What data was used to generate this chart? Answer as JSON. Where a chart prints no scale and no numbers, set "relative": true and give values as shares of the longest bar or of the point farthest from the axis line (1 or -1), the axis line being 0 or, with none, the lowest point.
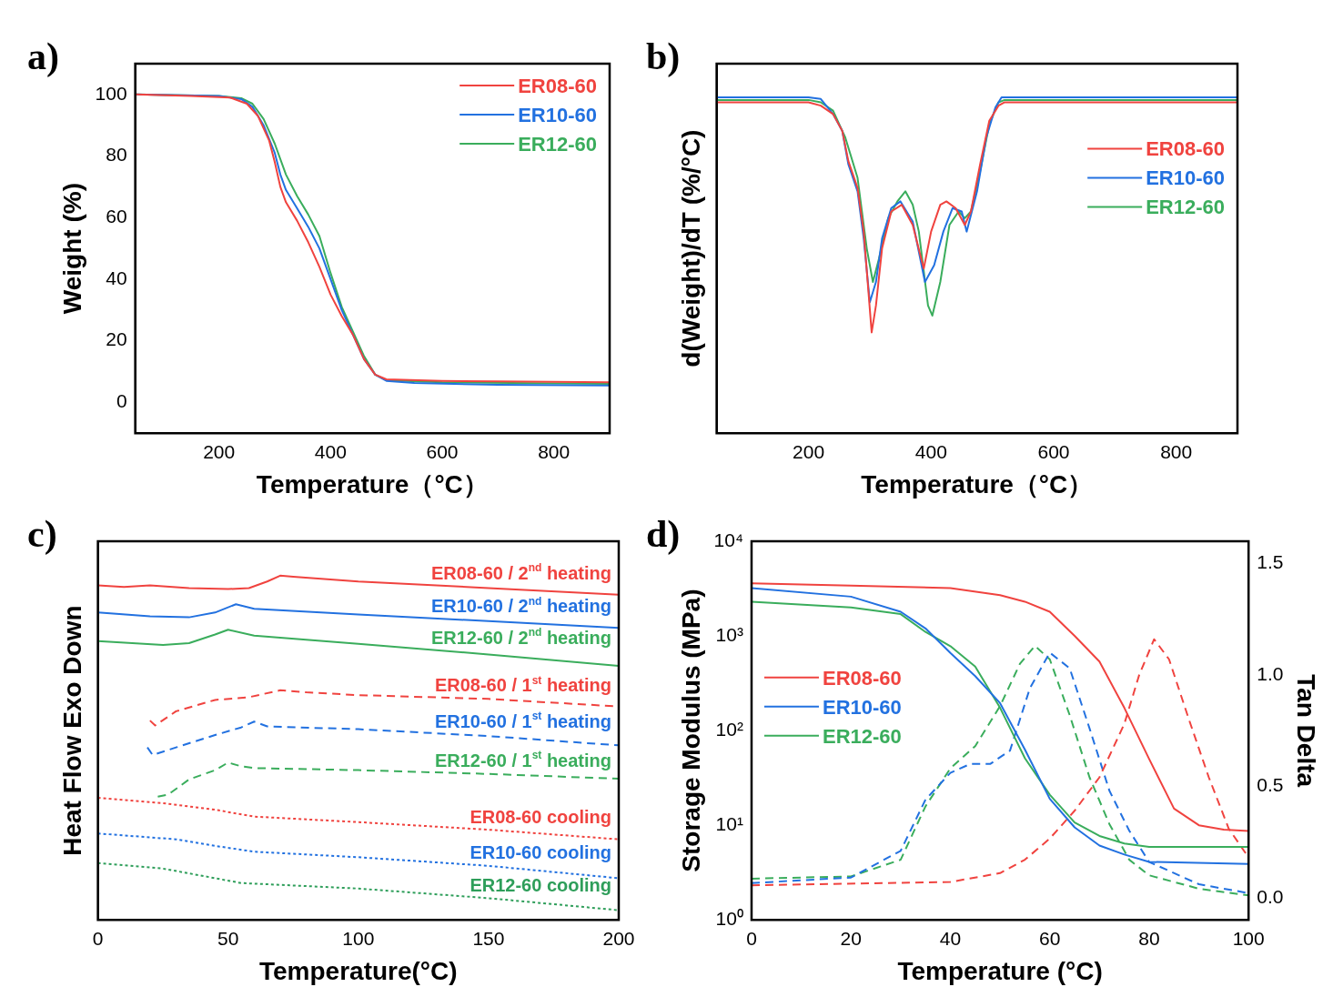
{
  "chart_data": [
    {
      "type": "line",
      "title": "a)",
      "xlabel": "Temperature（°C）",
      "ylabel": "Weight (%)",
      "xlim": [
        50,
        900
      ],
      "xticks": [
        200,
        400,
        600,
        800
      ],
      "ylim": [
        -10,
        110
      ],
      "yticks": [
        0,
        20,
        40,
        60,
        80,
        100
      ],
      "legend": "top right",
      "line_style": "solid",
      "marker": "none",
      "series": [
        {
          "name": "ER08-60",
          "color": "#f0433f",
          "x": [
            50,
            150,
            220,
            250,
            270,
            290,
            300,
            310,
            320,
            340,
            360,
            380,
            400,
            420,
            440,
            460,
            480,
            500,
            600,
            700,
            900
          ],
          "values": [
            100,
            99.5,
            99,
            97,
            93,
            85,
            78,
            70,
            65,
            59,
            52,
            44,
            35,
            28,
            22,
            14,
            9,
            7.5,
            7,
            6.8,
            6.5
          ]
        },
        {
          "name": "ER10-60",
          "color": "#2271e0",
          "x": [
            50,
            200,
            240,
            260,
            280,
            300,
            310,
            320,
            340,
            360,
            380,
            400,
            420,
            440,
            460,
            480,
            500,
            550,
            700,
            900
          ],
          "values": [
            100,
            99.5,
            98.5,
            96,
            90,
            81,
            74,
            69,
            63,
            57,
            50,
            40,
            30,
            22,
            14,
            9,
            7,
            6.3,
            5.7,
            5.5
          ]
        },
        {
          "name": "ER12-60",
          "color": "#3aad5c",
          "x": [
            50,
            200,
            240,
            260,
            280,
            300,
            320,
            340,
            360,
            380,
            400,
            420,
            440,
            460,
            480,
            500,
            600,
            900
          ],
          "values": [
            100,
            99.5,
            98.8,
            97,
            92,
            84,
            74,
            67,
            61,
            54,
            42,
            31,
            23,
            15,
            9,
            7.2,
            6.5,
            6
          ]
        }
      ]
    },
    {
      "type": "line",
      "title": "b)",
      "xlabel": "Temperature（°C）",
      "ylabel": "d(Weight)/dT (%/°C)",
      "xlim": [
        50,
        900
      ],
      "xticks": [
        200,
        400,
        600,
        800
      ],
      "relative": true,
      "tick_labels": "x",
      "legend": "right",
      "line_style": "solid",
      "marker": "none",
      "series": [
        {
          "name": "ER08-60",
          "color": "#f0433f",
          "x": [
            50,
            200,
            220,
            240,
            255,
            265,
            280,
            290,
            303,
            310,
            320,
            335,
            352,
            370,
            388,
            400,
            415,
            425,
            440,
            455,
            465,
            480,
            495,
            510,
            520,
            900
          ],
          "values": [
            0.985,
            0.985,
            0.975,
            0.95,
            0.9,
            0.81,
            0.73,
            0.6,
            0.3,
            0.38,
            0.55,
            0.66,
            0.68,
            0.62,
            0.49,
            0.6,
            0.68,
            0.69,
            0.67,
            0.62,
            0.66,
            0.8,
            0.93,
            0.975,
            0.985,
            0.985
          ]
        },
        {
          "name": "ER10-60",
          "color": "#2271e0",
          "x": [
            50,
            200,
            220,
            240,
            255,
            265,
            280,
            290,
            300,
            310,
            320,
            335,
            350,
            370,
            390,
            405,
            420,
            435,
            450,
            458,
            475,
            490,
            505,
            515,
            900
          ],
          "values": [
            1,
            1,
            0.995,
            0.95,
            0.9,
            0.8,
            0.72,
            0.58,
            0.39,
            0.45,
            0.58,
            0.67,
            0.69,
            0.63,
            0.45,
            0.5,
            0.6,
            0.67,
            0.66,
            0.6,
            0.72,
            0.88,
            0.97,
            1,
            1
          ]
        },
        {
          "name": "ER12-60",
          "color": "#3aad5c",
          "x": [
            50,
            200,
            220,
            240,
            260,
            280,
            295,
            305,
            315,
            330,
            345,
            358,
            370,
            380,
            395,
            402,
            415,
            430,
            445,
            455,
            465,
            480,
            495,
            510,
            520,
            900
          ],
          "values": [
            0.992,
            0.992,
            0.985,
            0.96,
            0.88,
            0.76,
            0.55,
            0.45,
            0.52,
            0.64,
            0.69,
            0.72,
            0.68,
            0.6,
            0.38,
            0.35,
            0.45,
            0.62,
            0.66,
            0.64,
            0.66,
            0.78,
            0.92,
            0.985,
            0.992,
            0.992
          ]
        }
      ]
    },
    {
      "type": "line",
      "title": "c)",
      "xlabel": "Temperature(°C)",
      "ylabel": "Heat Flow Exo Down",
      "xlim": [
        0,
        200
      ],
      "xticks": [
        0,
        50,
        100,
        150,
        200
      ],
      "relative": true,
      "tick_labels": "x",
      "marker": "none",
      "series": [
        {
          "name": "ER08-60 / 2$^{nd}$ heating",
          "color": "#f0433f",
          "line_style": "solid",
          "x": [
            0,
            10,
            20,
            35,
            50,
            58,
            65,
            70,
            75,
            100,
            150,
            200
          ],
          "values": [
            0.972,
            0.967,
            0.972,
            0.964,
            0.961,
            0.964,
            0.983,
            1,
            0.997,
            0.983,
            0.964,
            0.945
          ]
        },
        {
          "name": "ER10-60 / 2$^{nd}$ heating",
          "color": "#2271e0",
          "line_style": "solid",
          "x": [
            0,
            20,
            35,
            45,
            53,
            60,
            100,
            150,
            200
          ],
          "values": [
            0.893,
            0.882,
            0.879,
            0.893,
            0.917,
            0.904,
            0.887,
            0.868,
            0.848
          ]
        },
        {
          "name": "ER12-60 / 2$^{nd}$ heating",
          "color": "#3aad5c",
          "line_style": "solid",
          "x": [
            0,
            25,
            35,
            45,
            50,
            60,
            100,
            150,
            200
          ],
          "values": [
            0.81,
            0.799,
            0.804,
            0.829,
            0.843,
            0.826,
            0.802,
            0.771,
            0.738
          ]
        },
        {
          "name": "ER08-60 / 1$^{st}$ heating",
          "color": "#f0433f",
          "line_style": "dashed",
          "x": [
            20,
            22,
            30,
            45,
            58,
            70,
            80,
            100,
            150,
            200
          ],
          "values": [
            0.579,
            0.565,
            0.606,
            0.639,
            0.647,
            0.667,
            0.661,
            0.653,
            0.642,
            0.62
          ]
        },
        {
          "name": "ER10-60 / 1$^{st}$ heating",
          "color": "#2271e0",
          "line_style": "dashed",
          "x": [
            19,
            21,
            30,
            45,
            55,
            60,
            65,
            100,
            150,
            200
          ],
          "values": [
            0.501,
            0.479,
            0.501,
            0.537,
            0.559,
            0.576,
            0.562,
            0.554,
            0.534,
            0.507
          ]
        },
        {
          "name": "ER12-60 / 1$^{st}$ heating",
          "color": "#3aad5c",
          "line_style": "dashed",
          "x": [
            23,
            27,
            35,
            45,
            50,
            55,
            60,
            100,
            150,
            200
          ],
          "values": [
            0.358,
            0.364,
            0.408,
            0.435,
            0.457,
            0.446,
            0.441,
            0.435,
            0.424,
            0.41
          ]
        },
        {
          "name": "ER08-60 cooling",
          "color": "#f0433f",
          "line_style": "dotted",
          "x": [
            0,
            25,
            45,
            60,
            100,
            150,
            200
          ],
          "values": [
            0.355,
            0.339,
            0.32,
            0.3,
            0.284,
            0.262,
            0.234
          ]
        },
        {
          "name": "ER10-60 cooling",
          "color": "#2271e0",
          "line_style": "dotted",
          "x": [
            0,
            30,
            45,
            60,
            100,
            150,
            200
          ],
          "values": [
            0.251,
            0.234,
            0.215,
            0.198,
            0.182,
            0.157,
            0.121
          ]
        },
        {
          "name": "ER12-60 cooling",
          "color": "#2e9e5a",
          "line_style": "dotted",
          "x": [
            0,
            25,
            45,
            55,
            100,
            150,
            200
          ],
          "values": [
            0.165,
            0.149,
            0.121,
            0.107,
            0.091,
            0.063,
            0.028
          ]
        }
      ]
    },
    {
      "type": "line",
      "title": "d)",
      "xlabel": "Temperature (°C)",
      "ylabel": "Storage Modulus (MPa)",
      "y2label": "Tan Delta",
      "xlim": [
        0,
        100
      ],
      "xticks": [
        0,
        20,
        40,
        60,
        80,
        100
      ],
      "log": "y",
      "ylim": [
        1,
        10000
      ],
      "yticks": [
        {
          "value": 1,
          "label": "10⁰"
        },
        {
          "value": 10,
          "label": "10¹"
        },
        {
          "value": 100,
          "label": "10²"
        },
        {
          "value": 1000,
          "label": "10³"
        },
        {
          "value": 10000,
          "label": "10⁴"
        }
      ],
      "y2lim": [
        -0.1,
        1.6
      ],
      "y2ticks": [
        {
          "value": 0,
          "label": "0.0"
        },
        0.5,
        {
          "value": 1,
          "label": "1.0"
        },
        1.5
      ],
      "legend": "left",
      "marker": "none",
      "series": [
        {
          "name": "ER08-60",
          "color": "#f0433f",
          "line_style": "solid",
          "x": [
            0,
            20,
            40,
            50,
            55,
            60,
            65,
            70,
            75,
            80,
            85,
            90,
            95,
            100
          ],
          "values": [
            3600,
            3400,
            3200,
            2700,
            2300,
            1800,
            1000,
            535,
            174,
            50,
            15,
            10,
            9,
            8.7
          ]
        },
        {
          "name": "ER10-60",
          "color": "#2271e0",
          "line_style": "solid",
          "x": [
            0,
            20,
            30,
            35,
            40,
            45,
            50,
            55,
            60,
            65,
            70,
            75,
            80,
            100
          ],
          "values": [
            3200,
            2600,
            1800,
            1200,
            660,
            376,
            195,
            63,
            19,
            9.5,
            6.1,
            4.9,
            4.1,
            3.9
          ]
        },
        {
          "name": "ER12-60",
          "color": "#3aad5c",
          "line_style": "solid",
          "x": [
            0,
            20,
            30,
            35,
            40,
            45,
            50,
            55,
            60,
            65,
            70,
            75,
            80,
            100
          ],
          "values": [
            2300,
            2000,
            1700,
            1100,
            780,
            475,
            174,
            51,
            21,
            10.7,
            7.7,
            6.4,
            5.9,
            5.9
          ]
        },
        {
          "color": "#f0433f",
          "line_style": "dashed",
          "axis": "y2",
          "x": [
            0,
            40,
            50,
            55,
            60,
            65,
            70,
            75,
            78,
            81,
            84,
            88,
            92,
            96,
            100
          ],
          "values": [
            0.055,
            0.07,
            0.11,
            0.17,
            0.265,
            0.39,
            0.54,
            0.78,
            1,
            1.16,
            1.07,
            0.8,
            0.54,
            0.31,
            0.18
          ]
        },
        {
          "color": "#2271e0",
          "line_style": "dashed",
          "axis": "y2",
          "x": [
            0,
            20,
            30,
            35,
            40,
            44,
            48,
            52,
            56,
            60,
            64,
            68,
            72,
            76,
            80,
            90,
            100
          ],
          "values": [
            0.065,
            0.09,
            0.21,
            0.44,
            0.56,
            0.6,
            0.6,
            0.66,
            0.94,
            1.1,
            1.03,
            0.76,
            0.48,
            0.3,
            0.16,
            0.06,
            0.02
          ]
        },
        {
          "color": "#3aad5c",
          "line_style": "dashed",
          "axis": "y2",
          "x": [
            0,
            20,
            30,
            35,
            40,
            45,
            50,
            54,
            57,
            60,
            64,
            68,
            72,
            76,
            80,
            90,
            100
          ],
          "values": [
            0.085,
            0.095,
            0.17,
            0.41,
            0.58,
            0.68,
            0.86,
            1.05,
            1.13,
            1.07,
            0.82,
            0.54,
            0.33,
            0.17,
            0.1,
            0.04,
            0.01
          ]
        }
      ]
    }
  ]
}
